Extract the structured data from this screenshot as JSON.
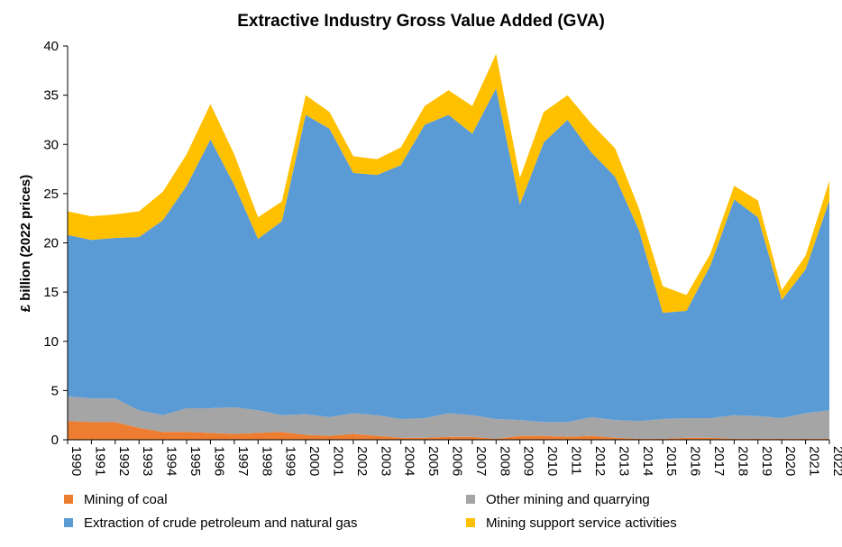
{
  "chart_data": {
    "type": "area",
    "stacked": true,
    "title": "Extractive Industry Gross Value Added (GVA)",
    "xlabel": "",
    "ylabel": "£ billion (2022 prices)",
    "ylim": [
      0,
      40
    ],
    "yticks": [
      0,
      5,
      10,
      15,
      20,
      25,
      30,
      35,
      40
    ],
    "grid": false,
    "legend_position": "bottom",
    "categories": [
      "1990",
      "1991",
      "1992",
      "1993",
      "1994",
      "1995",
      "1996",
      "1997",
      "1998",
      "1999",
      "2000",
      "2001",
      "2002",
      "2003",
      "2004",
      "2005",
      "2006",
      "2007",
      "2008",
      "2009",
      "2010",
      "2011",
      "2012",
      "2013",
      "2014",
      "2015",
      "2016",
      "2017",
      "2018",
      "2019",
      "2020",
      "2021",
      "2022"
    ],
    "series": [
      {
        "name": "Mining of coal",
        "color": "#ED7D31",
        "values": [
          1.9,
          1.8,
          1.8,
          1.2,
          0.8,
          0.8,
          0.7,
          0.6,
          0.7,
          0.8,
          0.5,
          0.4,
          0.6,
          0.4,
          0.2,
          0.2,
          0.3,
          0.3,
          0.1,
          0.4,
          0.4,
          0.3,
          0.4,
          0.2,
          0.1,
          0.1,
          0.2,
          0.2,
          0.1,
          0.1,
          0.1,
          0.1,
          0.1
        ]
      },
      {
        "name": "Other mining and quarrying",
        "color": "#A5A5A5",
        "values": [
          2.5,
          2.4,
          2.4,
          1.8,
          1.7,
          2.4,
          2.5,
          2.7,
          2.3,
          1.7,
          2.1,
          1.9,
          2.1,
          2.1,
          1.9,
          2.0,
          2.4,
          2.2,
          2.0,
          1.6,
          1.4,
          1.5,
          1.9,
          1.8,
          1.8,
          2.0,
          2.0,
          2.0,
          2.4,
          2.3,
          2.1,
          2.6,
          2.9
        ]
      },
      {
        "name": "Extraction of crude petroleum and natural gas",
        "color": "#5B9BD5",
        "values": [
          16.4,
          16.1,
          16.3,
          17.6,
          19.8,
          22.6,
          27.3,
          22.6,
          17.4,
          19.7,
          30.4,
          29.3,
          24.4,
          24.4,
          25.8,
          29.8,
          30.3,
          28.6,
          33.6,
          21.9,
          28.4,
          30.7,
          26.9,
          24.7,
          19.4,
          10.8,
          10.9,
          15.5,
          21.9,
          20.2,
          12.0,
          14.6,
          21.3
        ]
      },
      {
        "name": "Mining support service activities",
        "color": "#FFC000",
        "values": [
          2.4,
          2.4,
          2.4,
          2.6,
          2.9,
          3.2,
          3.6,
          3.1,
          2.2,
          2.0,
          2.0,
          1.7,
          1.7,
          1.6,
          1.8,
          1.9,
          2.5,
          2.8,
          3.5,
          2.7,
          3.1,
          2.5,
          2.9,
          2.9,
          2.2,
          2.7,
          1.6,
          1.2,
          1.4,
          1.7,
          1.0,
          1.4,
          2.0
        ]
      }
    ],
    "legend_order": [
      0,
      1,
      2,
      3
    ]
  }
}
